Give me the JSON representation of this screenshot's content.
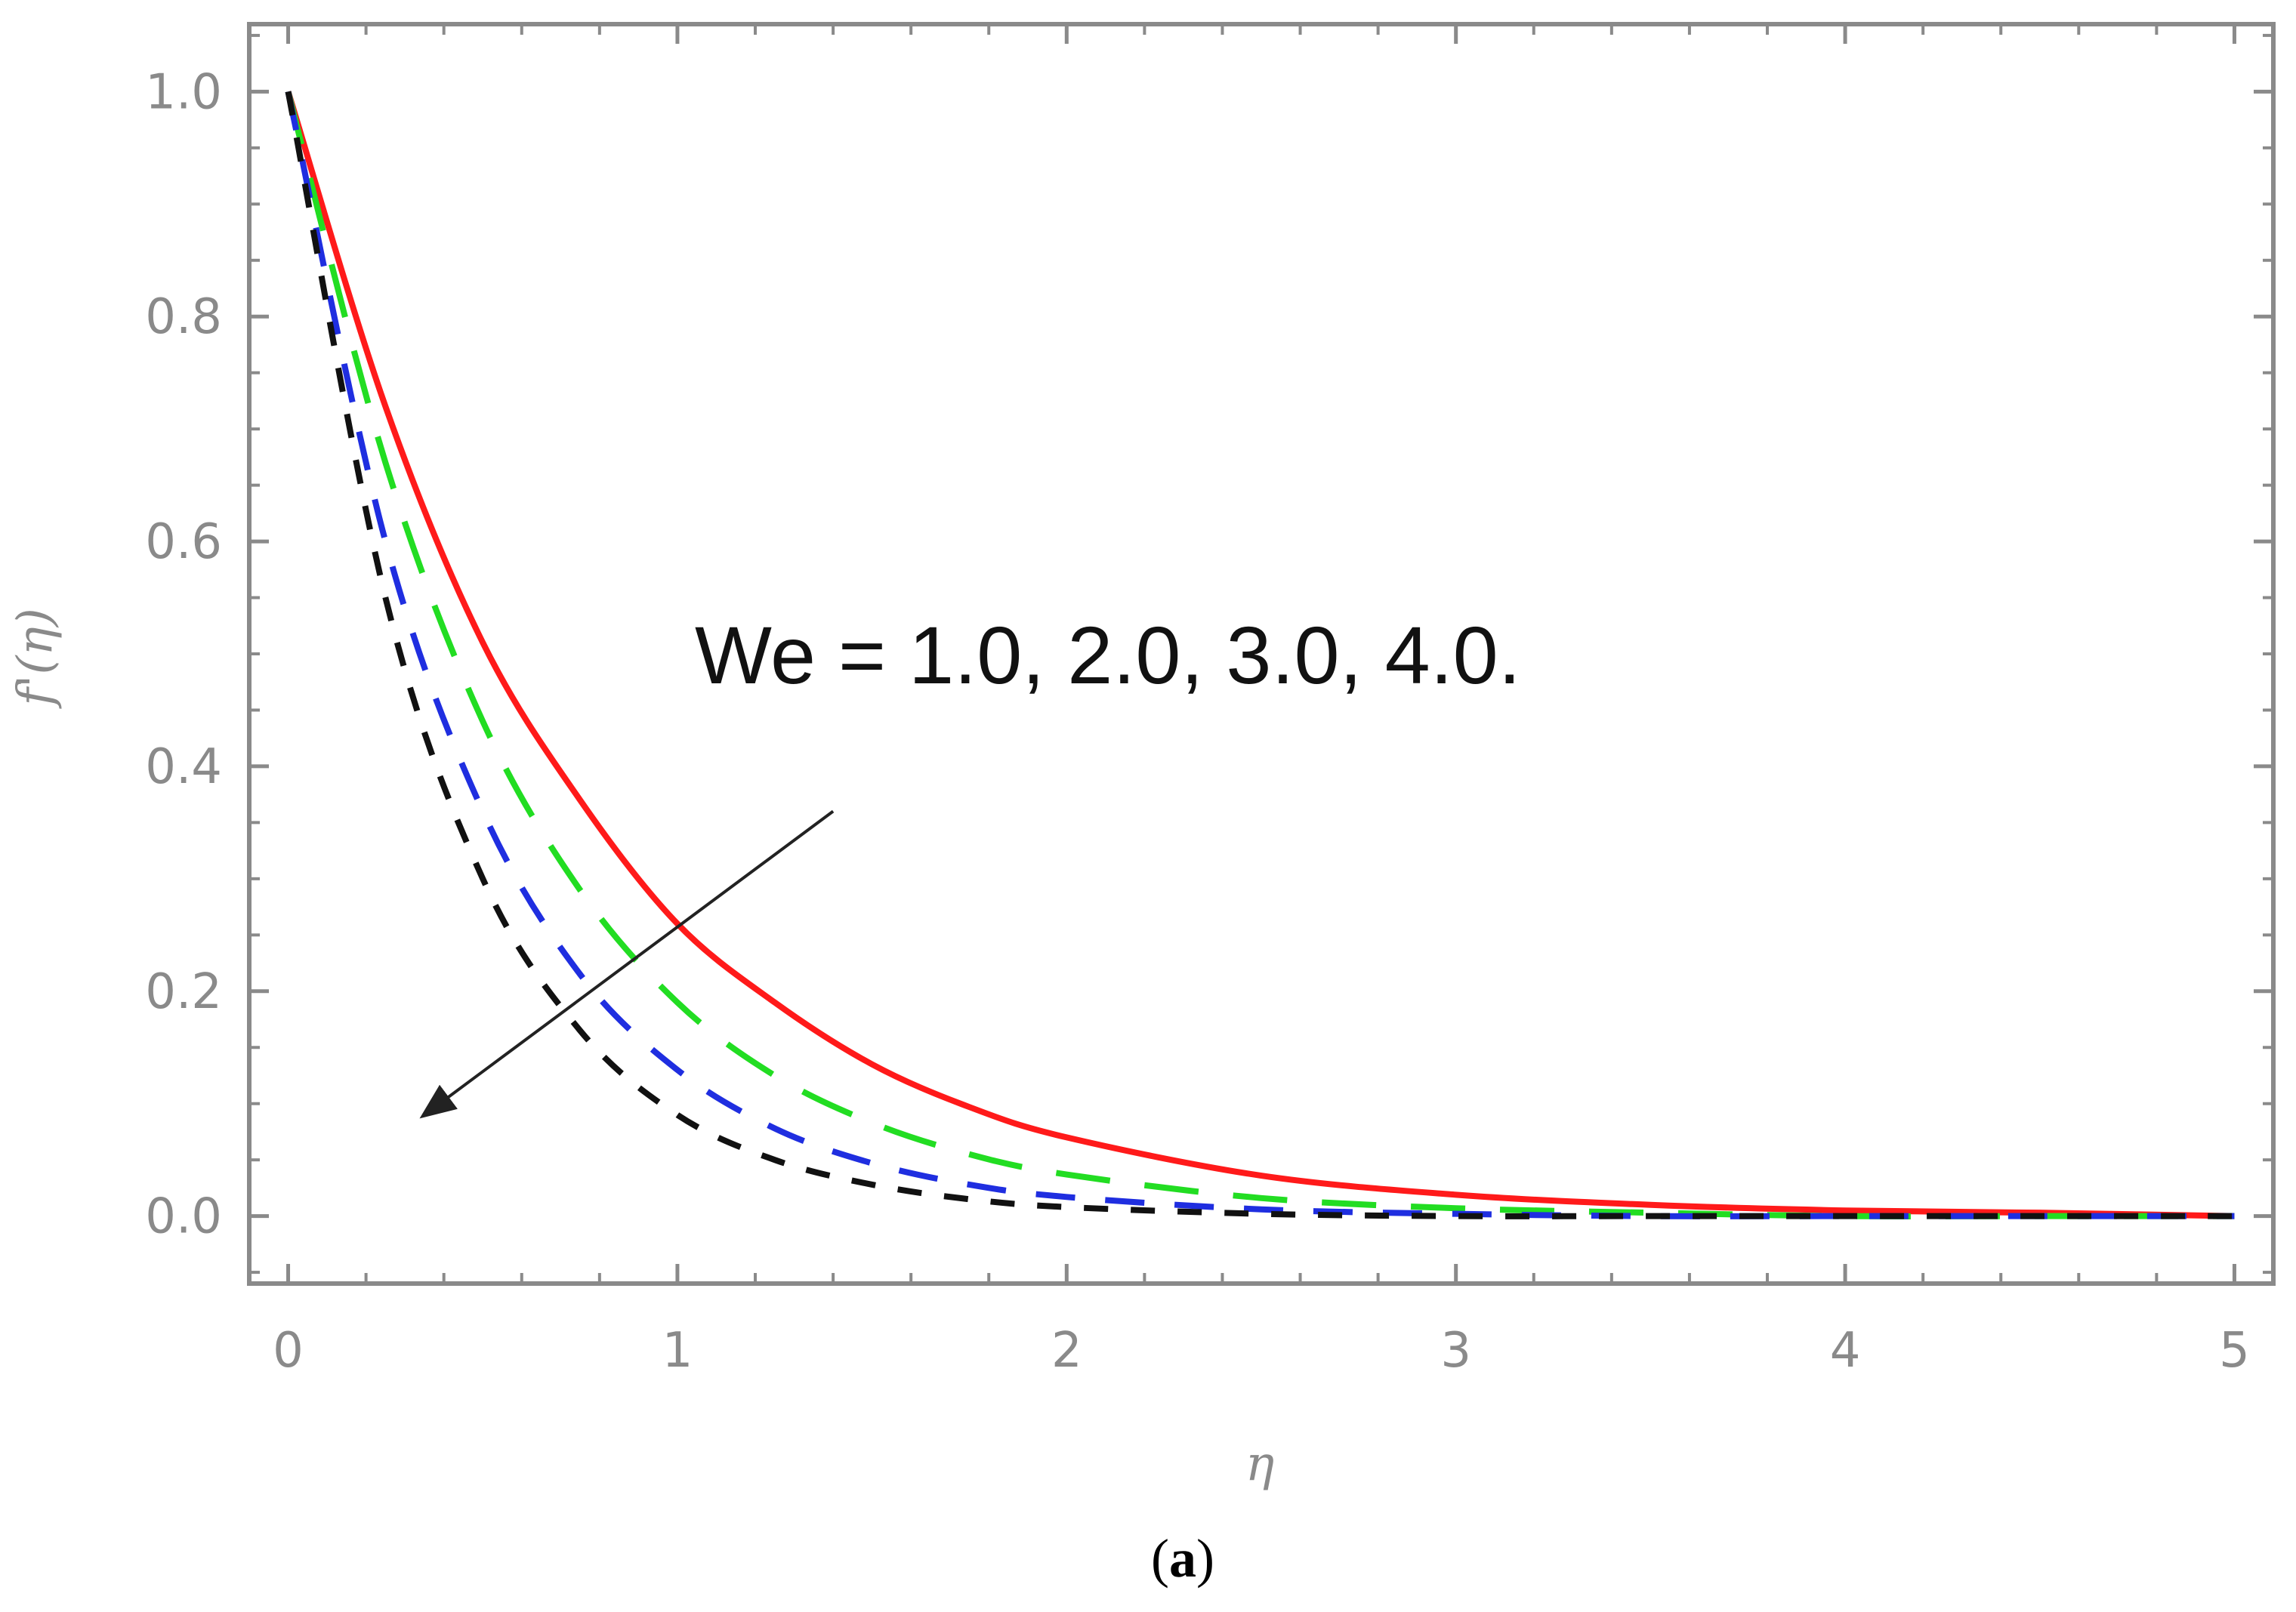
{
  "chart_data": {
    "type": "line",
    "title": "",
    "xlabel": "η",
    "ylabel": "f'(η)",
    "xlim": [
      -0.1,
      5.1
    ],
    "ylim": [
      -0.06,
      1.06
    ],
    "x_ticks": [
      "0",
      "1",
      "2",
      "3",
      "4",
      "5"
    ],
    "y_ticks": [
      "0.0",
      "0.2",
      "0.4",
      "0.6",
      "0.8",
      "1.0"
    ],
    "x_tick_values": [
      0,
      1,
      2,
      3,
      4,
      5
    ],
    "y_tick_values": [
      0,
      0.2,
      0.4,
      0.6,
      0.8,
      1.0
    ],
    "grid": false,
    "legend": "none",
    "annotation": "We = 1.0, 2.0, 3.0, 4.0.",
    "arrow": {
      "from": [
        1.4,
        0.36
      ],
      "to": [
        0.35,
        0.09
      ]
    },
    "series": [
      {
        "color": "#ff1a1a",
        "dash": "solid",
        "x": [
          0,
          0.25,
          0.5,
          0.75,
          1.0,
          1.25,
          1.5,
          1.75,
          2.0,
          2.5,
          3.0,
          3.5,
          4.0,
          4.5,
          5.0
        ],
        "y": [
          1.0,
          0.72,
          0.51,
          0.37,
          0.26,
          0.19,
          0.135,
          0.097,
          0.07,
          0.036,
          0.019,
          0.01,
          0.005,
          0.003,
          0.0
        ]
      },
      {
        "color": "#22dd22",
        "dash": "long",
        "x": [
          0,
          0.25,
          0.5,
          0.75,
          1.0,
          1.25,
          1.5,
          1.75,
          2.0,
          2.5,
          3.0,
          3.5,
          4.0,
          4.5,
          5.0
        ],
        "y": [
          1.0,
          0.67,
          0.44,
          0.29,
          0.19,
          0.125,
          0.083,
          0.055,
          0.037,
          0.016,
          0.007,
          0.003,
          0.0,
          0.0,
          0.0
        ]
      },
      {
        "color": "#1f2ee0",
        "dash": "medium",
        "x": [
          0,
          0.25,
          0.5,
          0.75,
          1.0,
          1.25,
          1.5,
          1.75,
          2.0,
          2.5,
          3.0,
          3.5,
          4.0,
          4.5,
          5.0
        ],
        "y": [
          1.0,
          0.6,
          0.36,
          0.215,
          0.13,
          0.078,
          0.047,
          0.028,
          0.017,
          0.006,
          0.002,
          0.0,
          0.0,
          0.0,
          0.0
        ]
      },
      {
        "color": "#111111",
        "dash": "short",
        "x": [
          0,
          0.25,
          0.5,
          0.75,
          1.0,
          1.25,
          1.5,
          1.75,
          2.0,
          2.5,
          3.0,
          3.5,
          4.0,
          4.5,
          5.0
        ],
        "y": [
          1.0,
          0.55,
          0.3,
          0.165,
          0.09,
          0.05,
          0.028,
          0.015,
          0.008,
          0.002,
          0.0,
          0.0,
          0.0,
          0.0,
          0.0
        ]
      }
    ],
    "colors": {
      "axis": "#8a8a8a",
      "arrow": "#222222"
    }
  },
  "caption": {
    "open": "(",
    "letter": "a",
    "close": ")"
  }
}
